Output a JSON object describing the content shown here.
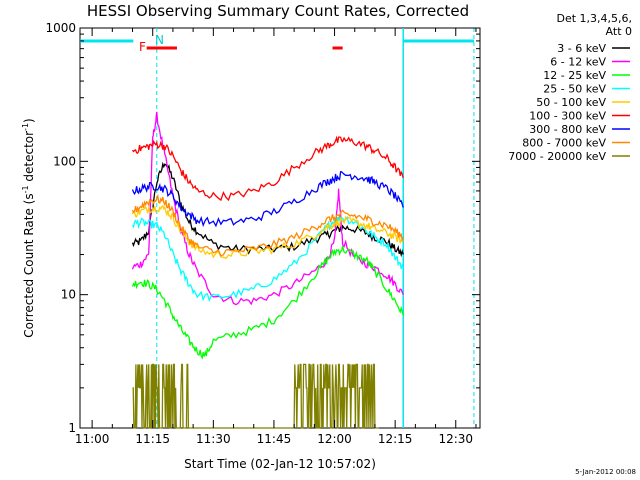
{
  "chart_data": {
    "type": "line",
    "title": "HESSI Observing Summary Count Rates, Corrected",
    "xlabel": "Start Time (02-Jan-12 10:57:02)",
    "ylabel": "Corrected Count Rate (s⁻¹ detector⁻¹)",
    "ylabel_main": "Corrected Count Rate (s",
    "ylabel_sup1": "-1",
    "ylabel_mid": " detector",
    "ylabel_sup2": "-1",
    "ylabel_end": ")",
    "yscale": "log",
    "ylim": [
      1,
      1000
    ],
    "xlim": [
      "10:57",
      "12:36"
    ],
    "y_ticks": [
      "1",
      "10",
      "100",
      "1000"
    ],
    "x_ticks": [
      "11:00",
      "11:15",
      "11:30",
      "11:45",
      "12:00",
      "12:15",
      "12:30"
    ],
    "x_tick_minutes": [
      660,
      675,
      690,
      705,
      720,
      735,
      750
    ],
    "xlim_minutes": [
      657,
      756
    ],
    "flag_labels": {
      "flare": "F",
      "night": "N"
    },
    "markers": {
      "night_lines_min": [
        670.2,
        676.0
      ],
      "saa_lines_min": [
        737.0,
        754.5
      ],
      "red_bars_min": [
        [
          673.5,
          681.0
        ],
        [
          719.5,
          722.0
        ]
      ]
    },
    "legend_header": [
      "Det 1,3,4,5,6,",
      "Att 0"
    ],
    "series": [
      {
        "name": "3 - 6 keV",
        "color": "#000000",
        "x": [
          670,
          672,
          674,
          676,
          678,
          680,
          682,
          684,
          686,
          690,
          695,
          700,
          705,
          710,
          715,
          718,
          720,
          722,
          725,
          728,
          730,
          733,
          735,
          737
        ],
        "y": [
          24,
          25,
          30,
          70,
          100,
          75,
          48,
          35,
          30,
          24,
          22,
          22,
          22,
          23,
          26,
          28,
          30,
          32,
          31,
          29,
          27,
          25,
          22,
          20
        ]
      },
      {
        "name": "6 - 12 keV",
        "color": "#ff00ff",
        "x": [
          670,
          672,
          674,
          675,
          676,
          678,
          680,
          682,
          684,
          686,
          690,
          695,
          700,
          705,
          710,
          715,
          718,
          720,
          721,
          722,
          725,
          728,
          730,
          733,
          735,
          737
        ],
        "y": [
          16,
          17,
          20,
          150,
          220,
          110,
          55,
          30,
          20,
          15,
          10,
          9,
          9,
          10,
          12,
          15,
          18,
          25,
          60,
          25,
          19,
          17,
          16,
          14,
          12,
          10
        ]
      },
      {
        "name": "12 - 25 keV",
        "color": "#00ff00",
        "x": [
          670,
          672,
          674,
          676,
          678,
          680,
          682,
          684,
          686,
          688,
          690,
          695,
          700,
          705,
          710,
          715,
          718,
          720,
          722,
          725,
          728,
          730,
          733,
          735,
          737
        ],
        "y": [
          12,
          12.5,
          12,
          11,
          9,
          7,
          5.5,
          4.5,
          3.8,
          3.5,
          4.5,
          5,
          5.5,
          6.5,
          9,
          14,
          18,
          21,
          22,
          20,
          18,
          15,
          11,
          9,
          7
        ]
      },
      {
        "name": "25 - 50 keV",
        "color": "#00ffff",
        "x": [
          670,
          672,
          674,
          676,
          678,
          680,
          682,
          684,
          686,
          690,
          695,
          700,
          705,
          710,
          715,
          718,
          720,
          722,
          725,
          728,
          730,
          733,
          735,
          737
        ],
        "y": [
          34,
          35,
          34,
          33,
          28,
          20,
          15,
          12,
          10,
          9.5,
          10,
          11,
          13,
          17,
          25,
          32,
          36,
          38,
          35,
          30,
          27,
          24,
          19,
          16
        ]
      },
      {
        "name": "50 - 100 keV",
        "color": "#ffcc00",
        "x": [
          670,
          672,
          674,
          676,
          678,
          680,
          682,
          684,
          686,
          690,
          695,
          700,
          705,
          710,
          715,
          718,
          720,
          722,
          725,
          728,
          730,
          733,
          735,
          737
        ],
        "y": [
          40,
          42,
          44,
          45,
          44,
          38,
          30,
          25,
          22,
          20,
          20,
          21,
          22,
          24,
          28,
          32,
          34,
          36,
          35,
          33,
          31,
          29,
          27,
          25
        ]
      },
      {
        "name": "100 - 300 keV",
        "color": "#ff0000",
        "x": [
          670,
          672,
          674,
          676,
          678,
          680,
          682,
          684,
          686,
          690,
          695,
          700,
          705,
          710,
          715,
          718,
          720,
          722,
          725,
          728,
          730,
          733,
          735,
          737
        ],
        "y": [
          120,
          125,
          130,
          135,
          130,
          110,
          85,
          70,
          60,
          55,
          55,
          60,
          70,
          90,
          115,
          130,
          140,
          145,
          140,
          130,
          120,
          105,
          90,
          75
        ]
      },
      {
        "name": "300 - 800 keV",
        "color": "#0000ff",
        "x": [
          670,
          672,
          674,
          676,
          678,
          680,
          682,
          684,
          686,
          690,
          695,
          700,
          705,
          710,
          715,
          718,
          720,
          722,
          725,
          728,
          730,
          733,
          735,
          737
        ],
        "y": [
          60,
          62,
          65,
          65,
          62,
          55,
          45,
          40,
          36,
          35,
          35,
          37,
          42,
          50,
          62,
          70,
          75,
          80,
          78,
          74,
          70,
          62,
          55,
          45
        ]
      },
      {
        "name": "800 - 7000 keV",
        "color": "#ff8800",
        "x": [
          670,
          672,
          674,
          676,
          678,
          680,
          682,
          684,
          686,
          690,
          695,
          700,
          705,
          710,
          715,
          718,
          720,
          722,
          725,
          728,
          730,
          733,
          735,
          737
        ],
        "y": [
          42,
          46,
          50,
          52,
          50,
          42,
          32,
          26,
          23,
          21,
          21,
          22,
          24,
          27,
          32,
          36,
          38,
          40,
          39,
          37,
          35,
          33,
          30,
          27
        ]
      },
      {
        "name": "7000 - 20000 keV",
        "color": "#808000",
        "x": [
          670,
          671,
          672,
          673,
          674,
          675,
          676,
          677,
          678,
          679,
          680,
          681,
          682,
          683,
          684,
          685,
          686,
          710,
          711,
          712,
          713,
          714,
          715,
          716,
          717,
          718,
          719,
          720,
          721,
          722,
          723,
          724,
          725,
          726,
          727,
          728,
          729,
          730,
          731
        ],
        "y": [
          1,
          2,
          1,
          3,
          1,
          2,
          3,
          1,
          2,
          1,
          2,
          1,
          1,
          2,
          1,
          1,
          1,
          1,
          2,
          1,
          2,
          1,
          2,
          1,
          2,
          1,
          2,
          3,
          2,
          3,
          2,
          1,
          2,
          1,
          2,
          1,
          2,
          1,
          1
        ]
      }
    ]
  },
  "footer_stamp": "5-Jan-2012 00:08"
}
